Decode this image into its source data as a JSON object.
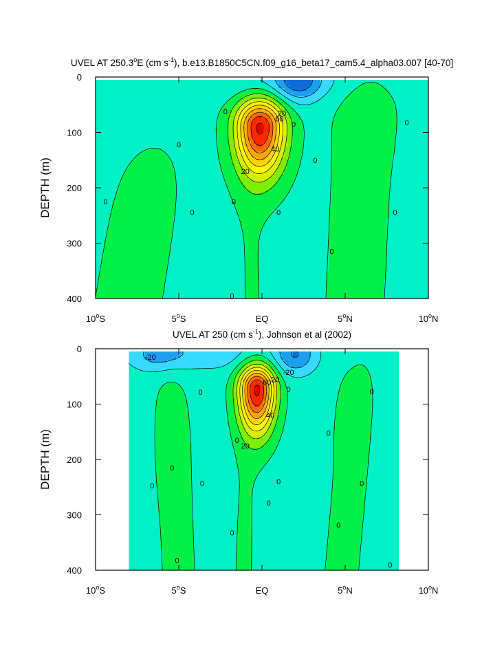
{
  "chart_data": [
    {
      "type": "contour",
      "title_parts": [
        "UVEL AT 250.3",
        "o",
        "E (cm s",
        "-1",
        "), b.e13.B1850C5CN.f09_g16_beta17_cam5.4_alpha03.007 [40-70]"
      ],
      "ylabel": "DEPTH (m)",
      "xlim": [
        -10,
        10
      ],
      "ylim": [
        0,
        400
      ],
      "y_inverted": true,
      "x_ticks": [
        {
          "v": -10,
          "num": "10",
          "hem": "S"
        },
        {
          "v": -5,
          "num": "5",
          "hem": "S"
        },
        {
          "v": 0,
          "num": "EQ",
          "hem": ""
        },
        {
          "v": 5,
          "num": "5",
          "hem": "N"
        },
        {
          "v": 10,
          "num": "10",
          "hem": "N"
        }
      ],
      "y_ticks": [
        "0",
        "100",
        "200",
        "300",
        "400"
      ],
      "data_xlim": [
        -10,
        10
      ],
      "data_ylim": [
        5,
        400
      ],
      "contour_interval": 10,
      "contour_labels": [
        {
          "x": 1.2,
          "y": 65,
          "text": "20"
        },
        {
          "x": 1.05,
          "y": 75,
          "text": "60"
        },
        {
          "x": 0.8,
          "y": 130,
          "text": "40"
        },
        {
          "x": -1.0,
          "y": 170,
          "text": "20"
        },
        {
          "x": -2.2,
          "y": 62,
          "text": "0"
        },
        {
          "x": 1.9,
          "y": 85,
          "text": "0"
        },
        {
          "x": -5.0,
          "y": 122,
          "text": "0"
        },
        {
          "x": -9.4,
          "y": 225,
          "text": "0"
        },
        {
          "x": -4.2,
          "y": 244,
          "text": "0"
        },
        {
          "x": -1.7,
          "y": 225,
          "text": "0"
        },
        {
          "x": 1.0,
          "y": 244,
          "text": "0"
        },
        {
          "x": 3.2,
          "y": 150,
          "text": "0"
        },
        {
          "x": 4.2,
          "y": 315,
          "text": "0"
        },
        {
          "x": 8.0,
          "y": 244,
          "text": "0"
        },
        {
          "x": 8.7,
          "y": 82,
          "text": "0"
        },
        {
          "x": -1.8,
          "y": 395,
          "text": "0"
        }
      ],
      "features": [
        {
          "kind": "jet",
          "name": "equatorial undercurrent",
          "x": -0.1,
          "y": 90,
          "amp": 84,
          "sx": 1.0,
          "sy_up": 35,
          "sy_down": 60
        },
        {
          "kind": "jet",
          "name": "south equatorial current north",
          "x": 2.2,
          "y": 5,
          "amp": -28,
          "sx": 1.0,
          "sy": 28
        },
        {
          "kind": "jet",
          "name": "surface westward flow",
          "x": 0.6,
          "y": 5,
          "amp": -10,
          "sx": 3.6,
          "sy": 25
        },
        {
          "kind": "ridge",
          "name": "south ridge",
          "x_top": -5.8,
          "x_bottom": -8.0,
          "sx": 2.0,
          "y_top": 110,
          "y_fade": 45,
          "amp": 5
        },
        {
          "kind": "ridge",
          "name": "north ridge",
          "x_top": 6.2,
          "x_bottom": 5.6,
          "sx": 1.6,
          "y_top": 5,
          "y_fade": 20,
          "amp": 5.5
        },
        {
          "kind": "jet",
          "name": "north core",
          "x": 6.3,
          "y": 65,
          "amp": 4.5,
          "sx": 0.9,
          "sy": 55
        },
        {
          "kind": "ridge",
          "name": "equatorial tail",
          "x_top": -0.8,
          "x_bottom": -0.6,
          "sx": 0.75,
          "y_top": 110,
          "y_fade": 60,
          "amp": 3.5
        }
      ],
      "background": -3
    },
    {
      "type": "contour",
      "title_parts": [
        "UVEL AT 250 (cm s",
        "-1",
        "), Johnson et al (2002)"
      ],
      "ylabel": "DEPTH (m)",
      "xlim": [
        -10,
        10
      ],
      "ylim": [
        0,
        400
      ],
      "y_inverted": true,
      "x_ticks": [
        {
          "v": -10,
          "num": "10",
          "hem": "S"
        },
        {
          "v": -5,
          "num": "5",
          "hem": "S"
        },
        {
          "v": 0,
          "num": "EQ",
          "hem": ""
        },
        {
          "v": 5,
          "num": "5",
          "hem": "N"
        },
        {
          "v": 10,
          "num": "10",
          "hem": "N"
        }
      ],
      "y_ticks": [
        "0",
        "100",
        "200",
        "300",
        "400"
      ],
      "data_xlim": [
        -8,
        8.2
      ],
      "data_ylim": [
        5,
        400
      ],
      "contour_interval": 10,
      "contour_labels": [
        {
          "x": -6.7,
          "y": 15,
          "text": "-20"
        },
        {
          "x": 1.6,
          "y": 42,
          "text": "-20"
        },
        {
          "x": 0.8,
          "y": 55,
          "text": "20"
        },
        {
          "x": 0.3,
          "y": 60,
          "text": "60"
        },
        {
          "x": 0.5,
          "y": 120,
          "text": "40"
        },
        {
          "x": -1.0,
          "y": 175,
          "text": "20"
        },
        {
          "x": -3.7,
          "y": 78,
          "text": "0"
        },
        {
          "x": -1.5,
          "y": 165,
          "text": "0"
        },
        {
          "x": 1.6,
          "y": 73,
          "text": "0"
        },
        {
          "x": 4.0,
          "y": 152,
          "text": "0"
        },
        {
          "x": 6.6,
          "y": 77,
          "text": "0"
        },
        {
          "x": -6.6,
          "y": 247,
          "text": "0"
        },
        {
          "x": -5.4,
          "y": 215,
          "text": "0"
        },
        {
          "x": -3.6,
          "y": 243,
          "text": "0"
        },
        {
          "x": 1.0,
          "y": 240,
          "text": "0"
        },
        {
          "x": 0.4,
          "y": 278,
          "text": "0"
        },
        {
          "x": -1.8,
          "y": 332,
          "text": "0"
        },
        {
          "x": 4.6,
          "y": 318,
          "text": "0"
        },
        {
          "x": 6.0,
          "y": 243,
          "text": "0"
        },
        {
          "x": -5.1,
          "y": 382,
          "text": "0"
        },
        {
          "x": 7.7,
          "y": 390,
          "text": "0"
        }
      ],
      "features": [
        {
          "kind": "jet",
          "name": "equatorial undercurrent",
          "x": -0.3,
          "y": 72,
          "amp": 86,
          "sx": 0.75,
          "sy_up": 30,
          "sy_down": 55
        },
        {
          "kind": "jet",
          "name": "south equatorial current north",
          "x": 2.0,
          "y": 10,
          "amp": -26,
          "sx": 0.9,
          "sy": 25
        },
        {
          "kind": "jet",
          "name": "south equatorial current south",
          "x": -6.2,
          "y": 10,
          "amp": -20,
          "sx": 1.3,
          "sy": 22
        },
        {
          "kind": "jet",
          "name": "surface westward flow",
          "x": -2.5,
          "y": 5,
          "amp": -12,
          "sx": 2.0,
          "sy": 25
        },
        {
          "kind": "ridge",
          "name": "south ridge",
          "x_top": -5.5,
          "x_bottom": -5.0,
          "sx": 0.85,
          "y_top": 60,
          "y_fade": 30,
          "amp": 7.5
        },
        {
          "kind": "jet",
          "name": "south core",
          "x": -5.5,
          "y": 165,
          "amp": 6,
          "sx": 0.5,
          "sy": 70
        },
        {
          "kind": "ridge",
          "name": "north ridge",
          "x_top": 6.0,
          "x_bottom": 4.8,
          "sx": 0.9,
          "y_top": 25,
          "y_fade": 30,
          "amp": 7.5
        },
        {
          "kind": "jet",
          "name": "north core",
          "x": 5.0,
          "y": 150,
          "amp": 6,
          "sx": 0.35,
          "sy": 50
        },
        {
          "kind": "ridge",
          "name": "equatorial tail",
          "x_top": -0.8,
          "x_bottom": -1.1,
          "sx": 0.7,
          "y_top": 150,
          "y_fade": 50,
          "amp": 5
        },
        {
          "kind": "ridge",
          "name": "far south ridge",
          "x_top": -8.0,
          "x_bottom": -7.5,
          "sx": 0.6,
          "y_top": 300,
          "y_fade": 60,
          "amp": 4
        }
      ],
      "background": -4
    }
  ],
  "colors": {
    "scale_levels": [
      -30,
      -20,
      -10,
      0,
      10,
      20,
      30,
      40,
      50,
      60,
      70,
      80
    ],
    "scale_colors": [
      "#0a6cdb",
      "#1d9ff0",
      "#36d9ff",
      "#00f0c6",
      "#00f048",
      "#7cf000",
      "#d8f000",
      "#fff700",
      "#ffd400",
      "#ffa600",
      "#ff6a00",
      "#ff2800",
      "#e60000"
    ],
    "contour_line": "#000000",
    "frame": "#000000",
    "missing": "#ffffff"
  }
}
